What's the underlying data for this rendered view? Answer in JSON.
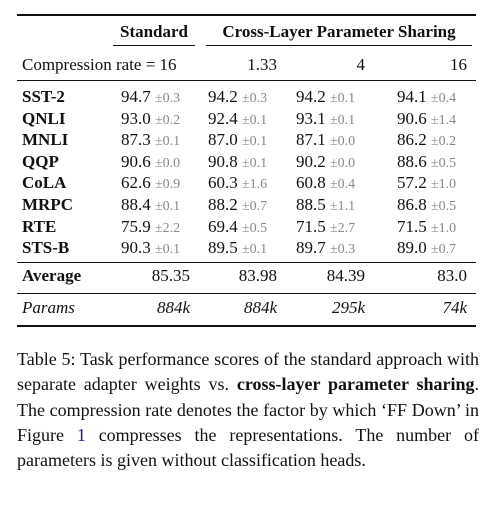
{
  "header": {
    "standard": "Standard",
    "sharing": "Cross-Layer Parameter Sharing"
  },
  "compression": {
    "label": "Compression rate = 16",
    "rates": [
      "1.33",
      "4",
      "16"
    ]
  },
  "rows": [
    {
      "name": "SST-2",
      "cells": [
        [
          "94.7",
          "±0.3"
        ],
        [
          "94.2",
          "±0.3"
        ],
        [
          "94.2",
          "±0.1"
        ],
        [
          "94.1",
          "±0.4"
        ]
      ]
    },
    {
      "name": "QNLI",
      "cells": [
        [
          "93.0",
          "±0.2"
        ],
        [
          "92.4",
          "±0.1"
        ],
        [
          "93.1",
          "±0.1"
        ],
        [
          "90.6",
          "±1.4"
        ]
      ]
    },
    {
      "name": "MNLI",
      "cells": [
        [
          "87.3",
          "±0.1"
        ],
        [
          "87.0",
          "±0.1"
        ],
        [
          "87.1",
          "±0.0"
        ],
        [
          "86.2",
          "±0.2"
        ]
      ]
    },
    {
      "name": "QQP",
      "cells": [
        [
          "90.6",
          "±0.0"
        ],
        [
          "90.8",
          "±0.1"
        ],
        [
          "90.2",
          "±0.0"
        ],
        [
          "88.6",
          "±0.5"
        ]
      ]
    },
    {
      "name": "CoLA",
      "cells": [
        [
          "62.6",
          "±0.9"
        ],
        [
          "60.3",
          "±1.6"
        ],
        [
          "60.8",
          "±0.4"
        ],
        [
          "57.2",
          "±1.0"
        ]
      ]
    },
    {
      "name": "MRPC",
      "cells": [
        [
          "88.4",
          "±0.1"
        ],
        [
          "88.2",
          "±0.7"
        ],
        [
          "88.5",
          "±1.1"
        ],
        [
          "86.8",
          "±0.5"
        ]
      ]
    },
    {
      "name": "RTE",
      "cells": [
        [
          "75.9",
          "±2.2"
        ],
        [
          "69.4",
          "±0.5"
        ],
        [
          "71.5",
          "±2.7"
        ],
        [
          "71.5",
          "±1.0"
        ]
      ]
    },
    {
      "name": "STS-B",
      "cells": [
        [
          "90.3",
          "±0.1"
        ],
        [
          "89.5",
          "±0.1"
        ],
        [
          "89.7",
          "±0.3"
        ],
        [
          "89.0",
          "±0.7"
        ]
      ]
    }
  ],
  "average": {
    "label": "Average",
    "values": [
      "85.35",
      "83.98",
      "84.39",
      "83.0"
    ]
  },
  "params": {
    "label": "Params",
    "values": [
      "884k",
      "884k",
      "295k",
      "74k"
    ]
  },
  "caption": [
    "Table 5:  Task performance scores of the standard approach with separate adapter weights vs. ",
    "cross-layer parameter sharing",
    ". The compression rate denotes the factor by which ‘FF Down’ in Figure ",
    "1",
    " compresses the representations.  The number of parameters is given without classification heads."
  ]
}
